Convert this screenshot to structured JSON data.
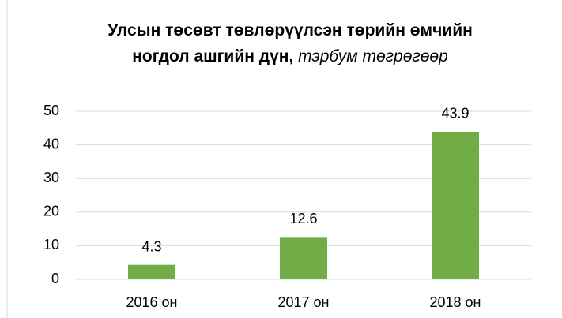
{
  "chart_data": {
    "type": "bar",
    "title": "Улсын төсөвт төвлөрүүлсэн төрийн өмчийн ногдол ашгийн дүн,",
    "subtitle": "тэрбум төгрөгөөр",
    "categories": [
      "2016 он",
      "2017 он",
      "2018 он"
    ],
    "values": [
      4.3,
      12.6,
      43.9
    ],
    "color": "#70ad47",
    "ylim": [
      0,
      50
    ],
    "yticks": [
      0,
      10,
      20,
      30,
      40,
      50
    ],
    "grid": true
  }
}
